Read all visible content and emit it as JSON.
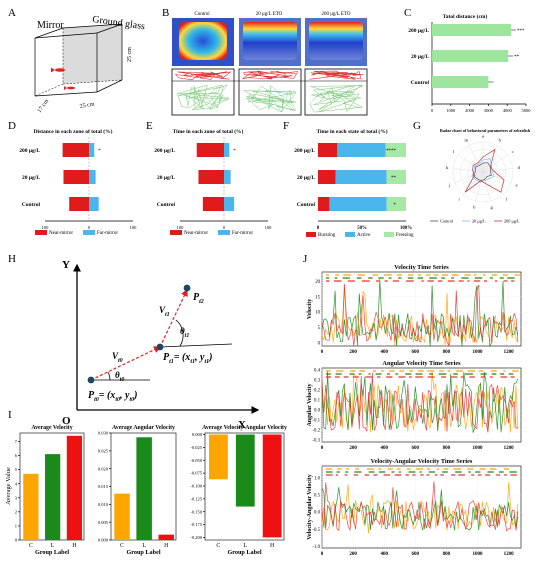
{
  "panel_letters": {
    "A": "A",
    "B": "B",
    "C": "C",
    "D": "D",
    "E": "E",
    "F": "F",
    "G": "G",
    "H": "H",
    "I": "I",
    "J": "J"
  },
  "panelA": {
    "mirror": "Mirror",
    "ground_glass": "Ground glass",
    "dim_h": "25 cm",
    "dim_w": "25 cm",
    "dim_d": "17 cm"
  },
  "panelB": {
    "labels": [
      "Control",
      "20 μg/L ETO",
      "200 μg/L ETO"
    ]
  },
  "panelC": {
    "title": "Tatol distance (cm)",
    "categories": [
      "200 μg/L",
      "20 μg/L",
      "Control"
    ],
    "values": [
      4200,
      4050,
      3000
    ],
    "sig": [
      "***",
      "**",
      ""
    ],
    "ticks": [
      "0",
      "1000",
      "2000",
      "3000",
      "4000",
      "5000"
    ],
    "xmax": 5000,
    "color": "#9ee69e"
  },
  "panelD": {
    "title": "Distance in each zone of total (%)",
    "categories": [
      "200 μg/L",
      "20 μg/L",
      "Control"
    ],
    "near": [
      60,
      58,
      45
    ],
    "far": [
      12,
      15,
      22
    ],
    "sig": [
      "*",
      "",
      ""
    ],
    "tick_left": "100",
    "tick_mid": "0",
    "tick_right": "100",
    "legend_near": "Near-mirror",
    "legend_far": "Far-mirror"
  },
  "panelE": {
    "title": "Time in each zone of total (%)",
    "categories": [
      "200 μg/L",
      "20 μg/L",
      "Control"
    ],
    "near": [
      62,
      58,
      48
    ],
    "far": [
      12,
      15,
      23
    ],
    "sig": [
      "*",
      "",
      ""
    ],
    "tick_left": "100",
    "tick_mid": "0",
    "tick_right": "100",
    "legend_near": "Near-mirror",
    "legend_far": "Far-mirror"
  },
  "panelF": {
    "title": "Time in each state of total (%)",
    "categories": [
      "200 μg/L",
      "20 μg/L",
      "Control"
    ],
    "bursting": [
      22,
      20,
      13
    ],
    "active": [
      55,
      58,
      65
    ],
    "freezing": [
      23,
      22,
      22
    ],
    "sig": [
      "****",
      "**",
      "*"
    ],
    "ticks": [
      "0",
      "50%",
      "100%"
    ],
    "legend": [
      "Bursting",
      "Active",
      "Freezing"
    ],
    "colors": [
      "#e01b1b",
      "#4ab6ee",
      "#a6e9a6"
    ]
  },
  "panelG": {
    "title": "Radar chart of behavioral parameters of zebrafish",
    "axes": [
      "a",
      "b",
      "c",
      "d",
      "e",
      "f",
      "g",
      "h",
      "i",
      "j",
      "k",
      "l",
      "m"
    ],
    "legend": [
      "Control",
      "20 μg/L",
      "200 μg/L"
    ]
  },
  "panelH": {
    "y_axis": "Y",
    "x_axis": "X",
    "origin": "O",
    "p0": "P",
    "p0_sub": "t0",
    "p1": "P",
    "p1_sub": "t1",
    "p2": "P",
    "p2_sub": "t2",
    "v0": "V",
    "v0_sub": "t0",
    "v1": "V",
    "v1_sub": "t1",
    "theta0": "θ",
    "theta0_sub": "t0",
    "theta1": "θ",
    "theta1_sub": "t1",
    "eq1": "= (x",
    "eq1_sub1": "t1",
    "eq1_mid": ", y",
    "eq1_sub2": "t1",
    "eq1_end": ")",
    "eq0": "= (x",
    "eq0_sub1": "t0",
    "eq0_mid": ", y",
    "eq0_sub2": "t0",
    "eq0_end": ")"
  },
  "panelI": {
    "ylabel": "Average Value",
    "xlabel": "Group Label",
    "categories": [
      "C",
      "L",
      "H"
    ],
    "colors": [
      "#ffa500",
      "#1a8a1a",
      "#ee1111"
    ],
    "charts": [
      {
        "title": "Average Velocity",
        "values": [
          4.7,
          6.1,
          7.4
        ],
        "ymin": 0,
        "ymax": 7.6,
        "ticks": [
          "0",
          "1",
          "2",
          "3",
          "4",
          "5",
          "6",
          "7"
        ]
      },
      {
        "title": "Average Angular Velocity",
        "values": [
          0.013,
          0.0288,
          0.0015
        ],
        "ymin": 0,
        "ymax": 0.03,
        "ticks": [
          "0.000",
          "0.005",
          "0.010",
          "0.015",
          "0.020",
          "0.025",
          "0.030"
        ]
      },
      {
        "title": "Average Velocity-Angular Velocity",
        "values": [
          -0.087,
          -0.14,
          -0.2
        ],
        "ymin": -0.205,
        "ymax": 0.003,
        "ticks": [
          "0.000",
          "-0.025",
          "-0.050",
          "-0.075",
          "-0.100",
          "-0.125",
          "-0.150",
          "-0.175",
          "-0.200"
        ]
      }
    ]
  },
  "panelJ": {
    "ylabels": [
      "Velocity",
      "Angular Velocity",
      "Velocity-Angular Velocity"
    ],
    "titles": [
      "Velocity Time Series",
      "Angular Velocity Time Series",
      "Velocity-Angular Velocity Time Series"
    ],
    "xticks": [
      "0",
      "200",
      "400",
      "600",
      "800",
      "1000",
      "1200"
    ],
    "yticks": [
      [
        "0",
        "5",
        "10",
        "15",
        "20"
      ],
      [
        "-0.3",
        "-0.2",
        "-0.1",
        "0.0",
        "0.1",
        "0.2",
        "0.3",
        "0.4"
      ],
      [
        "-1.0",
        "-0.5",
        "0.0",
        "0.5",
        "1.0"
      ]
    ],
    "colors": [
      "#ffa500",
      "#1a8a1a",
      "#ee3333"
    ]
  },
  "chart_data": [
    {
      "type": "bar",
      "title": "Tatol distance (cm)",
      "categories": [
        "200 μg/L",
        "20 μg/L",
        "Control"
      ],
      "values": [
        4200,
        4050,
        3000
      ],
      "xlim": [
        0,
        5000
      ]
    },
    {
      "type": "bar",
      "title": "Average Velocity",
      "categories": [
        "C",
        "L",
        "H"
      ],
      "values": [
        4.7,
        6.1,
        7.4
      ],
      "xlabel": "Group Label",
      "ylabel": "Average Value"
    },
    {
      "type": "bar",
      "title": "Average Angular Velocity",
      "categories": [
        "C",
        "L",
        "H"
      ],
      "values": [
        0.013,
        0.0288,
        0.0015
      ],
      "xlabel": "Group Label"
    },
    {
      "type": "bar",
      "title": "Average Velocity-Angular Velocity",
      "categories": [
        "C",
        "L",
        "H"
      ],
      "values": [
        -0.087,
        -0.14,
        -0.2
      ]
    }
  ]
}
